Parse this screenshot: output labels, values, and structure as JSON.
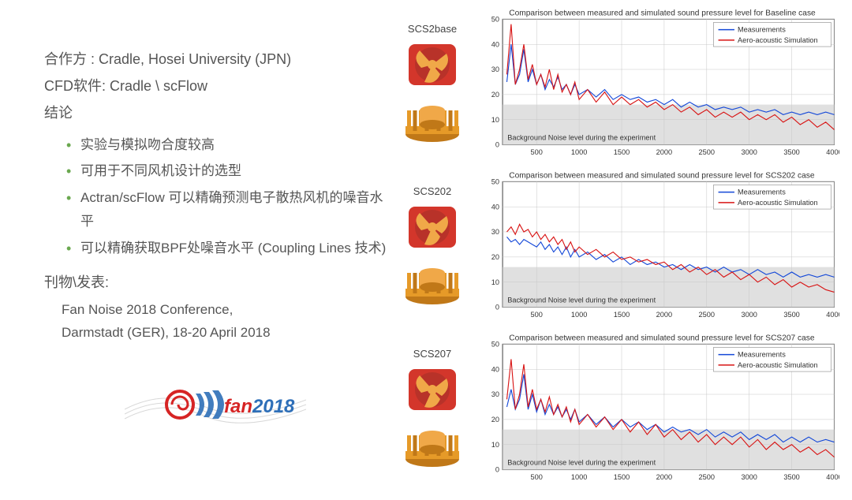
{
  "left": {
    "partner_label": "合作方 : ",
    "partner": "Cradle, Hosei University (JPN)",
    "software_label": "CFD软件: ",
    "software": "Cradle \\ scFlow",
    "conclusion_head": "结论",
    "bullets": [
      "实验与模拟吻合度较高",
      "可用于不同风机设计的选型",
      "Actran/scFlow 可以精确预测电子散热风机的噪音水平",
      "可以精确获取BPF处噪音水平 (Coupling Lines 技术)"
    ],
    "pub_head": "刊物\\发表:",
    "pub_line1": "Fan Noise  2018  Conference,",
    "pub_line2": "Darmstadt (GER), 18-20 April 2018",
    "logo_text": "fan2018",
    "logo_swirl_color": "#d62424",
    "logo_wave_color": "#2e6fb8",
    "logo_text_color_a": "#d62424",
    "logo_text_color_b": "#2e6fb8"
  },
  "charts": [
    {
      "label": "SCS2base",
      "title": "Comparison between measured and simulated sound pressure level for Baseline case"
    },
    {
      "label": "SCS202",
      "title": "Comparison between measured and simulated sound pressure level for SCS202 case"
    },
    {
      "label": "SCS207",
      "title": "Comparison between measured and simulated sound pressure level for SCS207 case"
    }
  ],
  "chart_style": {
    "type": "line",
    "xlim": [
      100,
      4000
    ],
    "ylim": [
      0,
      50
    ],
    "xticks": [
      500,
      1000,
      1500,
      2000,
      2500,
      3000,
      3500,
      4000
    ],
    "yticks": [
      0,
      10,
      20,
      30,
      40,
      50
    ],
    "grid_color": "#c8c8c8",
    "axis_color": "#444444",
    "background_color": "#ffffff",
    "noise_band_color": "#d0d0d0",
    "noise_band_y": [
      0,
      16
    ],
    "noise_label": "Background Noise level during the experiment",
    "title_fontsize": 10,
    "tick_fontsize": 9,
    "noise_fontsize": 9,
    "legend_fontsize": 9,
    "line_width": 1.1,
    "series": [
      {
        "name": "Measurements",
        "color": "#1448d8"
      },
      {
        "name": "Aero-acoustic Simulation",
        "color": "#d81414"
      }
    ],
    "legend_position": "top-right",
    "plot_margin": {
      "l": 34,
      "r": 6,
      "t": 18,
      "b": 22
    }
  },
  "chart_data": {
    "x": [
      150,
      200,
      250,
      300,
      350,
      400,
      450,
      500,
      550,
      600,
      650,
      700,
      750,
      800,
      850,
      900,
      950,
      1000,
      1100,
      1200,
      1300,
      1400,
      1500,
      1600,
      1700,
      1800,
      1900,
      2000,
      2100,
      2200,
      2300,
      2400,
      2500,
      2600,
      2700,
      2800,
      2900,
      3000,
      3100,
      3200,
      3300,
      3400,
      3500,
      3600,
      3700,
      3800,
      3900,
      4000
    ],
    "series": {
      "SCS2base": {
        "meas": [
          25,
          40,
          24,
          28,
          38,
          25,
          30,
          24,
          28,
          22,
          26,
          23,
          27,
          22,
          24,
          20,
          24,
          20,
          22,
          19,
          22,
          18,
          20,
          18,
          19,
          17,
          18,
          16,
          18,
          15,
          17,
          15,
          16,
          14,
          15,
          14,
          15,
          13,
          14,
          13,
          14,
          12,
          13,
          12,
          13,
          12,
          13,
          12
        ],
        "sim": [
          28,
          48,
          24,
          30,
          40,
          26,
          32,
          24,
          28,
          23,
          30,
          22,
          28,
          21,
          24,
          20,
          25,
          18,
          22,
          17,
          21,
          16,
          19,
          16,
          18,
          15,
          17,
          14,
          16,
          13,
          15,
          12,
          14,
          11,
          13,
          11,
          13,
          10,
          12,
          10,
          12,
          9,
          11,
          8,
          10,
          7,
          9,
          6
        ]
      },
      "SCS202": {
        "meas": [
          28,
          26,
          27,
          25,
          27,
          26,
          25,
          24,
          26,
          23,
          25,
          22,
          24,
          21,
          24,
          20,
          23,
          20,
          22,
          19,
          21,
          18,
          20,
          17,
          19,
          17,
          18,
          16,
          17,
          15,
          17,
          15,
          16,
          14,
          16,
          14,
          15,
          13,
          15,
          13,
          14,
          12,
          14,
          12,
          13,
          12,
          13,
          12
        ],
        "sim": [
          30,
          32,
          29,
          33,
          30,
          31,
          28,
          30,
          27,
          29,
          26,
          28,
          25,
          27,
          23,
          26,
          22,
          24,
          21,
          23,
          20,
          22,
          19,
          20,
          18,
          19,
          17,
          18,
          15,
          17,
          14,
          16,
          13,
          15,
          12,
          14,
          11,
          13,
          10,
          12,
          9,
          11,
          8,
          10,
          8,
          9,
          7,
          6
        ]
      },
      "SCS207": {
        "meas": [
          25,
          32,
          24,
          28,
          38,
          24,
          30,
          23,
          28,
          22,
          26,
          22,
          25,
          21,
          24,
          20,
          24,
          19,
          22,
          18,
          21,
          17,
          20,
          17,
          19,
          16,
          18,
          15,
          17,
          15,
          16,
          14,
          16,
          13,
          15,
          13,
          15,
          12,
          14,
          12,
          14,
          11,
          13,
          11,
          13,
          11,
          12,
          11
        ],
        "sim": [
          28,
          44,
          24,
          30,
          42,
          25,
          32,
          24,
          28,
          23,
          29,
          22,
          26,
          21,
          25,
          19,
          24,
          18,
          22,
          17,
          21,
          16,
          20,
          15,
          19,
          14,
          18,
          13,
          16,
          12,
          15,
          11,
          14,
          10,
          13,
          10,
          13,
          9,
          12,
          8,
          11,
          8,
          10,
          7,
          9,
          6,
          8,
          5
        ]
      }
    }
  },
  "thumb_colors": {
    "fan_body": "#d3362b",
    "fan_blade": "#f0a848",
    "heatsink_a": "#e69a28",
    "heatsink_b": "#c07818"
  }
}
